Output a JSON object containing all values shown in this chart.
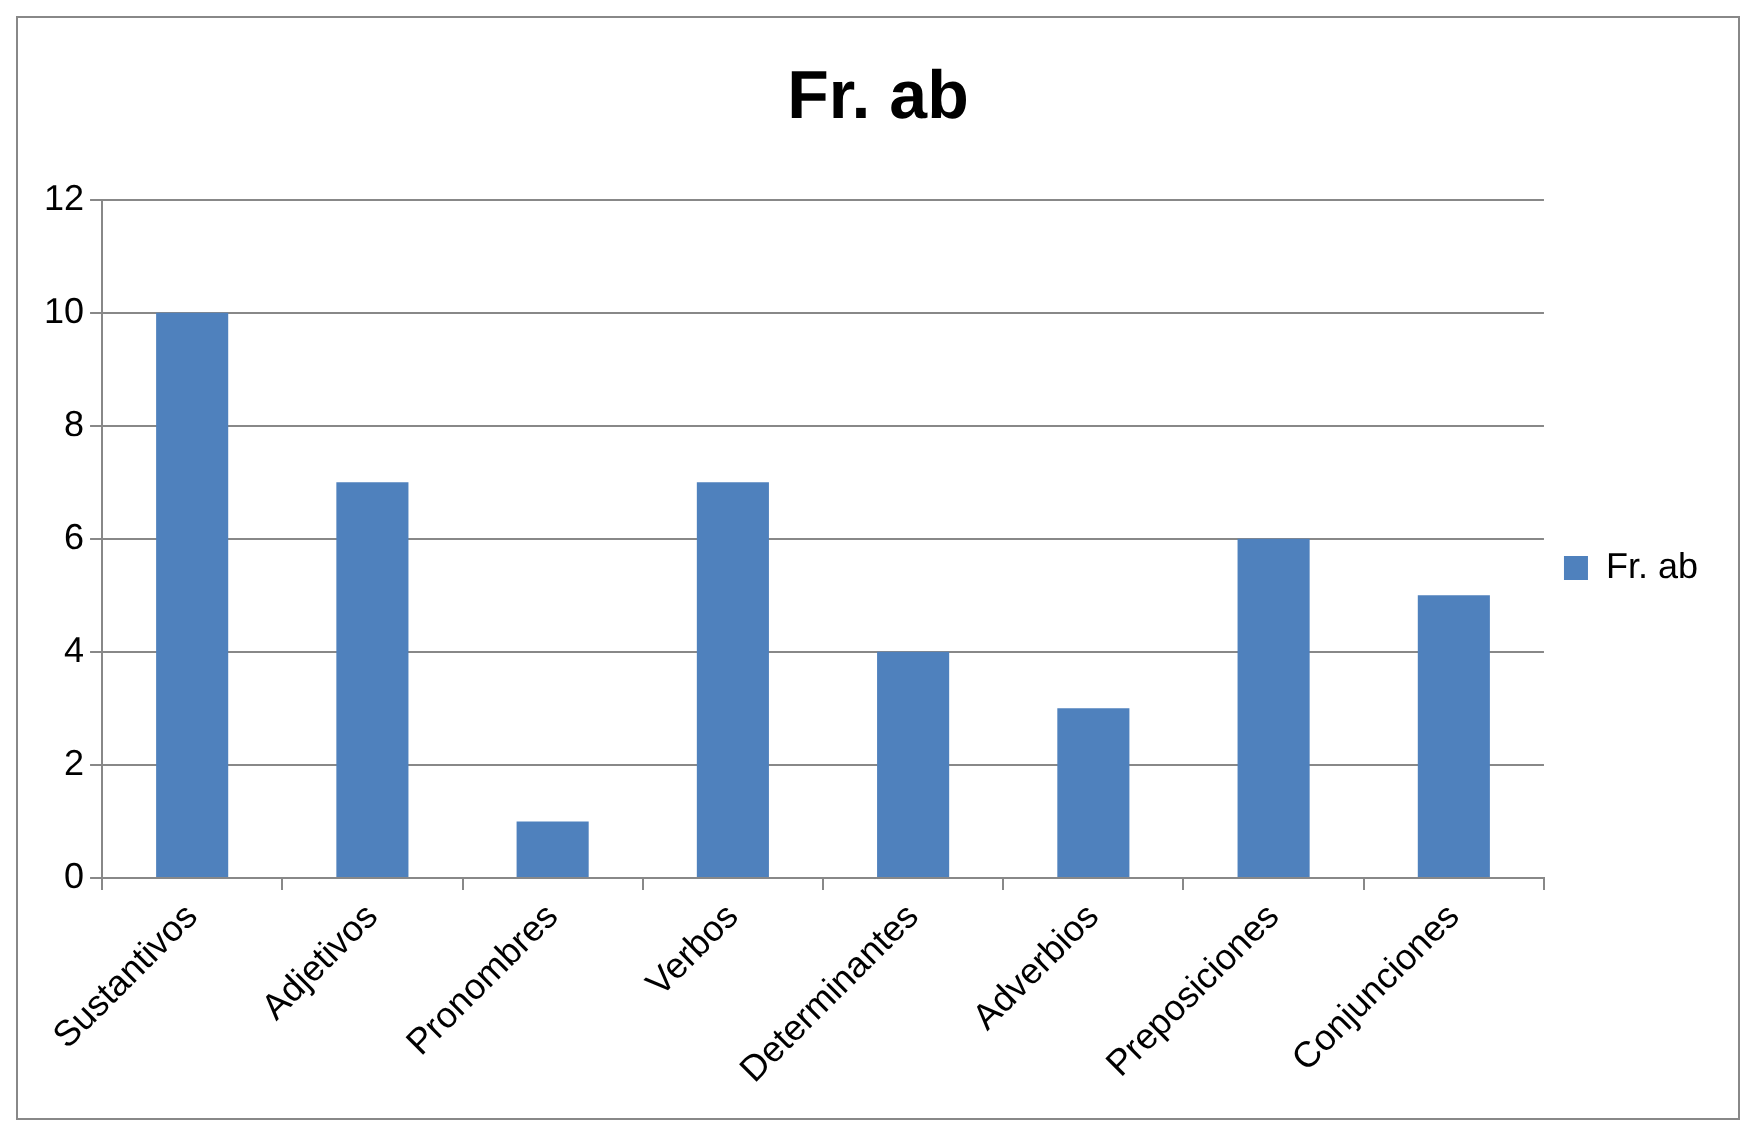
{
  "chart_data": {
    "type": "bar",
    "title": "Fr. ab",
    "categories": [
      "Sustantivos",
      "Adjetivos",
      "Pronombres",
      "Verbos",
      "Determinantes",
      "Adverbios",
      "Preposiciones",
      "Conjunciones"
    ],
    "series": [
      {
        "name": "Fr. ab",
        "color": "#4f81bd",
        "values": [
          10,
          7,
          1,
          7,
          4,
          3,
          6,
          5
        ]
      }
    ],
    "ylim": [
      0,
      12
    ],
    "yticks": [
      0,
      2,
      4,
      6,
      8,
      10,
      12
    ],
    "grid": "y",
    "legend": "right"
  }
}
